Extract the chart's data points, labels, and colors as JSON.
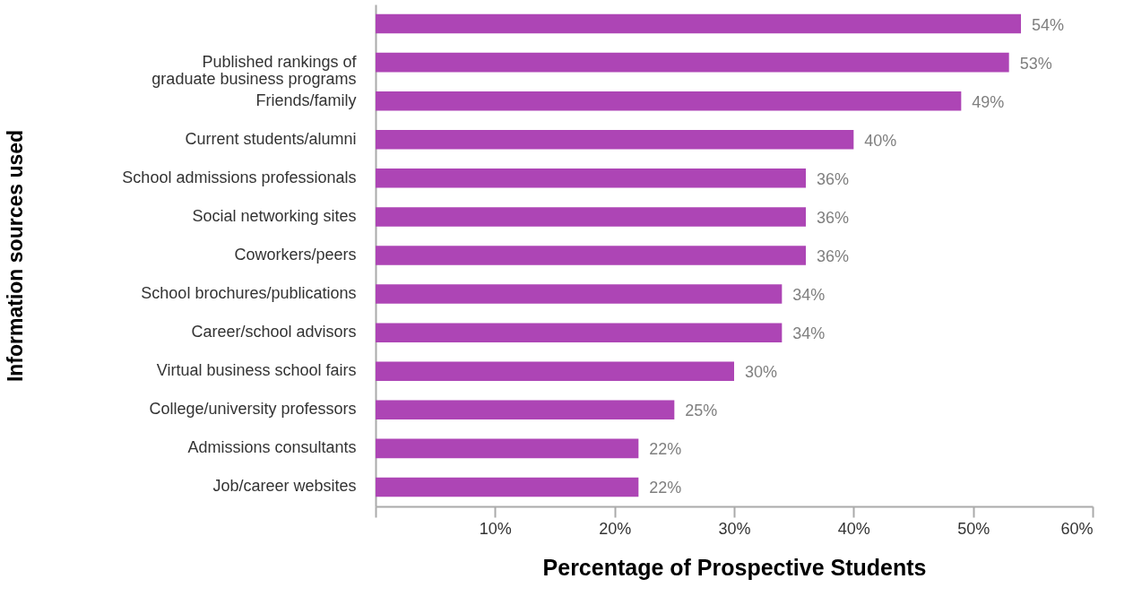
{
  "chart_data": {
    "type": "bar",
    "orientation": "horizontal",
    "xlabel": "Percentage of Prospective Students",
    "ylabel": "Information sources used",
    "categories": [
      null,
      "Published rankings of\ngraduate business programs",
      "Friends/family",
      "Current students/alumni",
      "School admissions professionals",
      "Social networking sites",
      "Coworkers/peers",
      "School brochures/publications",
      "Career/school advisors",
      "Virtual business school fairs",
      "College/university professors",
      "Admissions consultants",
      "Job/career websites"
    ],
    "values": [
      54,
      53,
      49,
      40,
      36,
      36,
      36,
      34,
      34,
      30,
      25,
      22,
      22
    ],
    "value_labels": [
      "54%",
      "53%",
      "49%",
      "40%",
      "36%",
      "36%",
      "36%",
      "34%",
      "34%",
      "30%",
      "25%",
      "22%",
      "22%"
    ],
    "color": "#ad45b5",
    "xlim": [
      0,
      60
    ],
    "xticks": [
      {
        "value": 0,
        "label": null
      },
      {
        "value": 10,
        "label": "10%"
      },
      {
        "value": 20,
        "label": "20%"
      },
      {
        "value": 30,
        "label": "30%"
      },
      {
        "value": 40,
        "label": "40%"
      },
      {
        "value": 50,
        "label": "50%"
      },
      {
        "value": 60,
        "label": "60%"
      }
    ],
    "grid": false
  }
}
